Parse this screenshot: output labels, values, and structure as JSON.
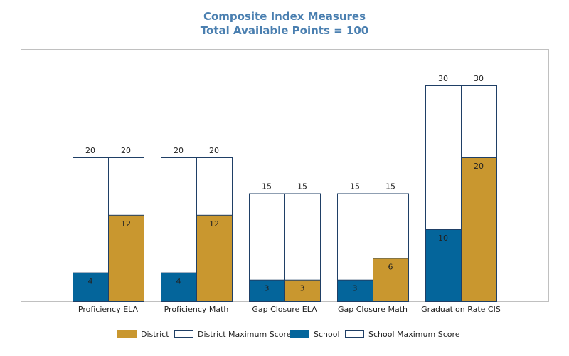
{
  "colors": {
    "district": "#c9972f",
    "school": "#04659b",
    "max_fill": "#ffffff",
    "max_border": "#1f3f66",
    "title": "#4a7fb0",
    "plot_border": "#c0c0c0"
  },
  "chart_data": {
    "type": "bar",
    "title": "Composite Index Measures",
    "subtitle": "Total Available Points = 100",
    "categories": [
      "Proficiency ELA",
      "Proficiency Math",
      "Gap Closure ELA",
      "Gap Closure Math",
      "Graduation Rate CIS"
    ],
    "series": [
      {
        "name": "School",
        "values": [
          4,
          4,
          3,
          3,
          10
        ]
      },
      {
        "name": "School Maximum Score",
        "values": [
          20,
          20,
          15,
          15,
          30
        ]
      },
      {
        "name": "District",
        "values": [
          12,
          12,
          3,
          6,
          20
        ]
      },
      {
        "name": "District Maximum Score",
        "values": [
          20,
          20,
          15,
          15,
          30
        ]
      }
    ],
    "ylim": [
      0,
      30
    ],
    "grid": false,
    "legend_position": "bottom",
    "legend": [
      "District",
      "District Maximum Score",
      "School",
      "School Maximum Score"
    ]
  }
}
